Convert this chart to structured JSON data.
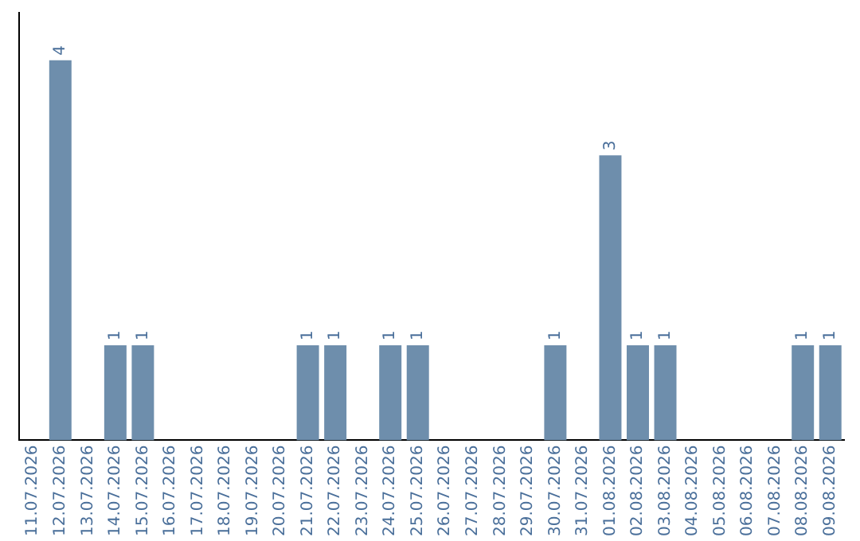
{
  "chart_data": {
    "type": "bar",
    "categories": [
      "11.07.2026",
      "12.07.2026",
      "13.07.2026",
      "14.07.2026",
      "15.07.2026",
      "16.07.2026",
      "17.07.2026",
      "18.07.2026",
      "19.07.2026",
      "20.07.2026",
      "21.07.2026",
      "22.07.2026",
      "23.07.2026",
      "24.07.2026",
      "25.07.2026",
      "26.07.2026",
      "27.07.2026",
      "28.07.2026",
      "29.07.2026",
      "30.07.2026",
      "31.07.2026",
      "01.08.2026",
      "02.08.2026",
      "03.08.2026",
      "04.08.2026",
      "05.08.2026",
      "06.08.2026",
      "07.08.2026",
      "08.08.2026",
      "09.08.2026"
    ],
    "values": [
      null,
      4,
      null,
      1,
      1,
      null,
      null,
      null,
      null,
      null,
      1,
      1,
      null,
      1,
      1,
      null,
      null,
      null,
      null,
      1,
      null,
      3,
      1,
      1,
      null,
      null,
      null,
      null,
      1,
      1
    ],
    "color": "#6e8eac",
    "data_labels": true,
    "grid": false,
    "legend": false
  }
}
